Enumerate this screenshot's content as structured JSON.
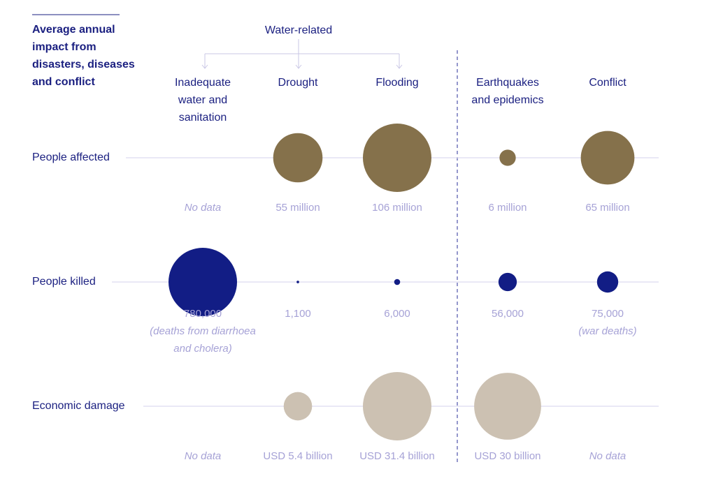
{
  "chart_data": {
    "type": "bubble",
    "title": "Average annual impact from disasters, diseases and conflict",
    "group_label": "Water-related",
    "columns": [
      "Inadequate water and sanitation",
      "Drought",
      "Flooding",
      "Earthquakes and epidemics",
      "Conflict"
    ],
    "column_lines": [
      [
        "Inadequate",
        "water and",
        "sanitation"
      ],
      [
        "Drought"
      ],
      [
        "Flooding"
      ],
      [
        "Earthquakes",
        "and epidemics"
      ],
      [
        "Conflict"
      ]
    ],
    "colors": {
      "affected": "#85714b",
      "killed": "#121d85",
      "economic": "#ccc1b2",
      "text": "#1a1f80",
      "muted": "#a6a2d6"
    },
    "series": [
      {
        "name": "People affected",
        "unit": "million",
        "values": [
          null,
          55,
          106,
          6,
          65
        ],
        "labels": [
          "No data",
          "55 million",
          "106 million",
          "6 million",
          "65 million"
        ],
        "notes": [
          "",
          "",
          "",
          "",
          ""
        ]
      },
      {
        "name": "People killed",
        "unit": "people",
        "values": [
          780000,
          1100,
          6000,
          56000,
          75000
        ],
        "labels": [
          "780,000",
          "1,100",
          "6,000",
          "56,000",
          "75,000"
        ],
        "notes": [
          "(deaths from diarrhoea and cholera)",
          "",
          "",
          "",
          "(war deaths)"
        ]
      },
      {
        "name": "Economic damage",
        "unit": "USD billion",
        "values": [
          null,
          5.4,
          31.4,
          30,
          null
        ],
        "labels": [
          "No data",
          "USD 5.4 billion",
          "USD 31.4 billion",
          "USD 30 billion",
          "No data"
        ],
        "notes": [
          "",
          "",
          "",
          "",
          ""
        ]
      }
    ]
  }
}
